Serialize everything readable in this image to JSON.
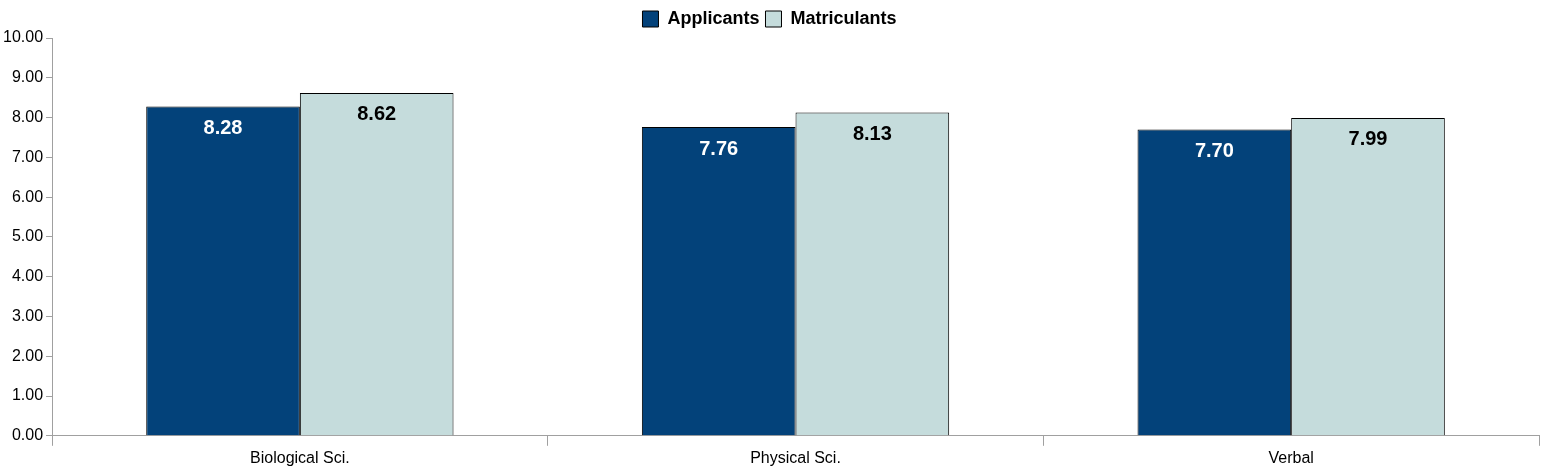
{
  "chart_data": {
    "type": "bar",
    "categories": [
      "Biological Sci.",
      "Physical Sci.",
      "Verbal"
    ],
    "series": [
      {
        "name": "Applicants",
        "color": "#03427a",
        "values": [
          8.28,
          7.76,
          7.7
        ],
        "value_labels": [
          "8.28",
          "7.76",
          "7.70"
        ]
      },
      {
        "name": "Matriculants",
        "color": "#c5dcdc",
        "values": [
          8.62,
          8.13,
          7.99
        ],
        "value_labels": [
          "8.62",
          "8.13",
          "7.99"
        ]
      }
    ],
    "ylim": [
      0,
      10
    ],
    "yticks": [
      {
        "value": 0,
        "label": "0.00"
      },
      {
        "value": 1,
        "label": "1.00"
      },
      {
        "value": 2,
        "label": "2.00"
      },
      {
        "value": 3,
        "label": "3.00"
      },
      {
        "value": 4,
        "label": "4.00"
      },
      {
        "value": 5,
        "label": "5.00"
      },
      {
        "value": 6,
        "label": "6.00"
      },
      {
        "value": 7,
        "label": "7.00"
      },
      {
        "value": 8,
        "label": "8.00"
      },
      {
        "value": 9,
        "label": "9.00"
      },
      {
        "value": 10,
        "label": "10.00"
      }
    ],
    "grid": false,
    "legend": "top"
  }
}
